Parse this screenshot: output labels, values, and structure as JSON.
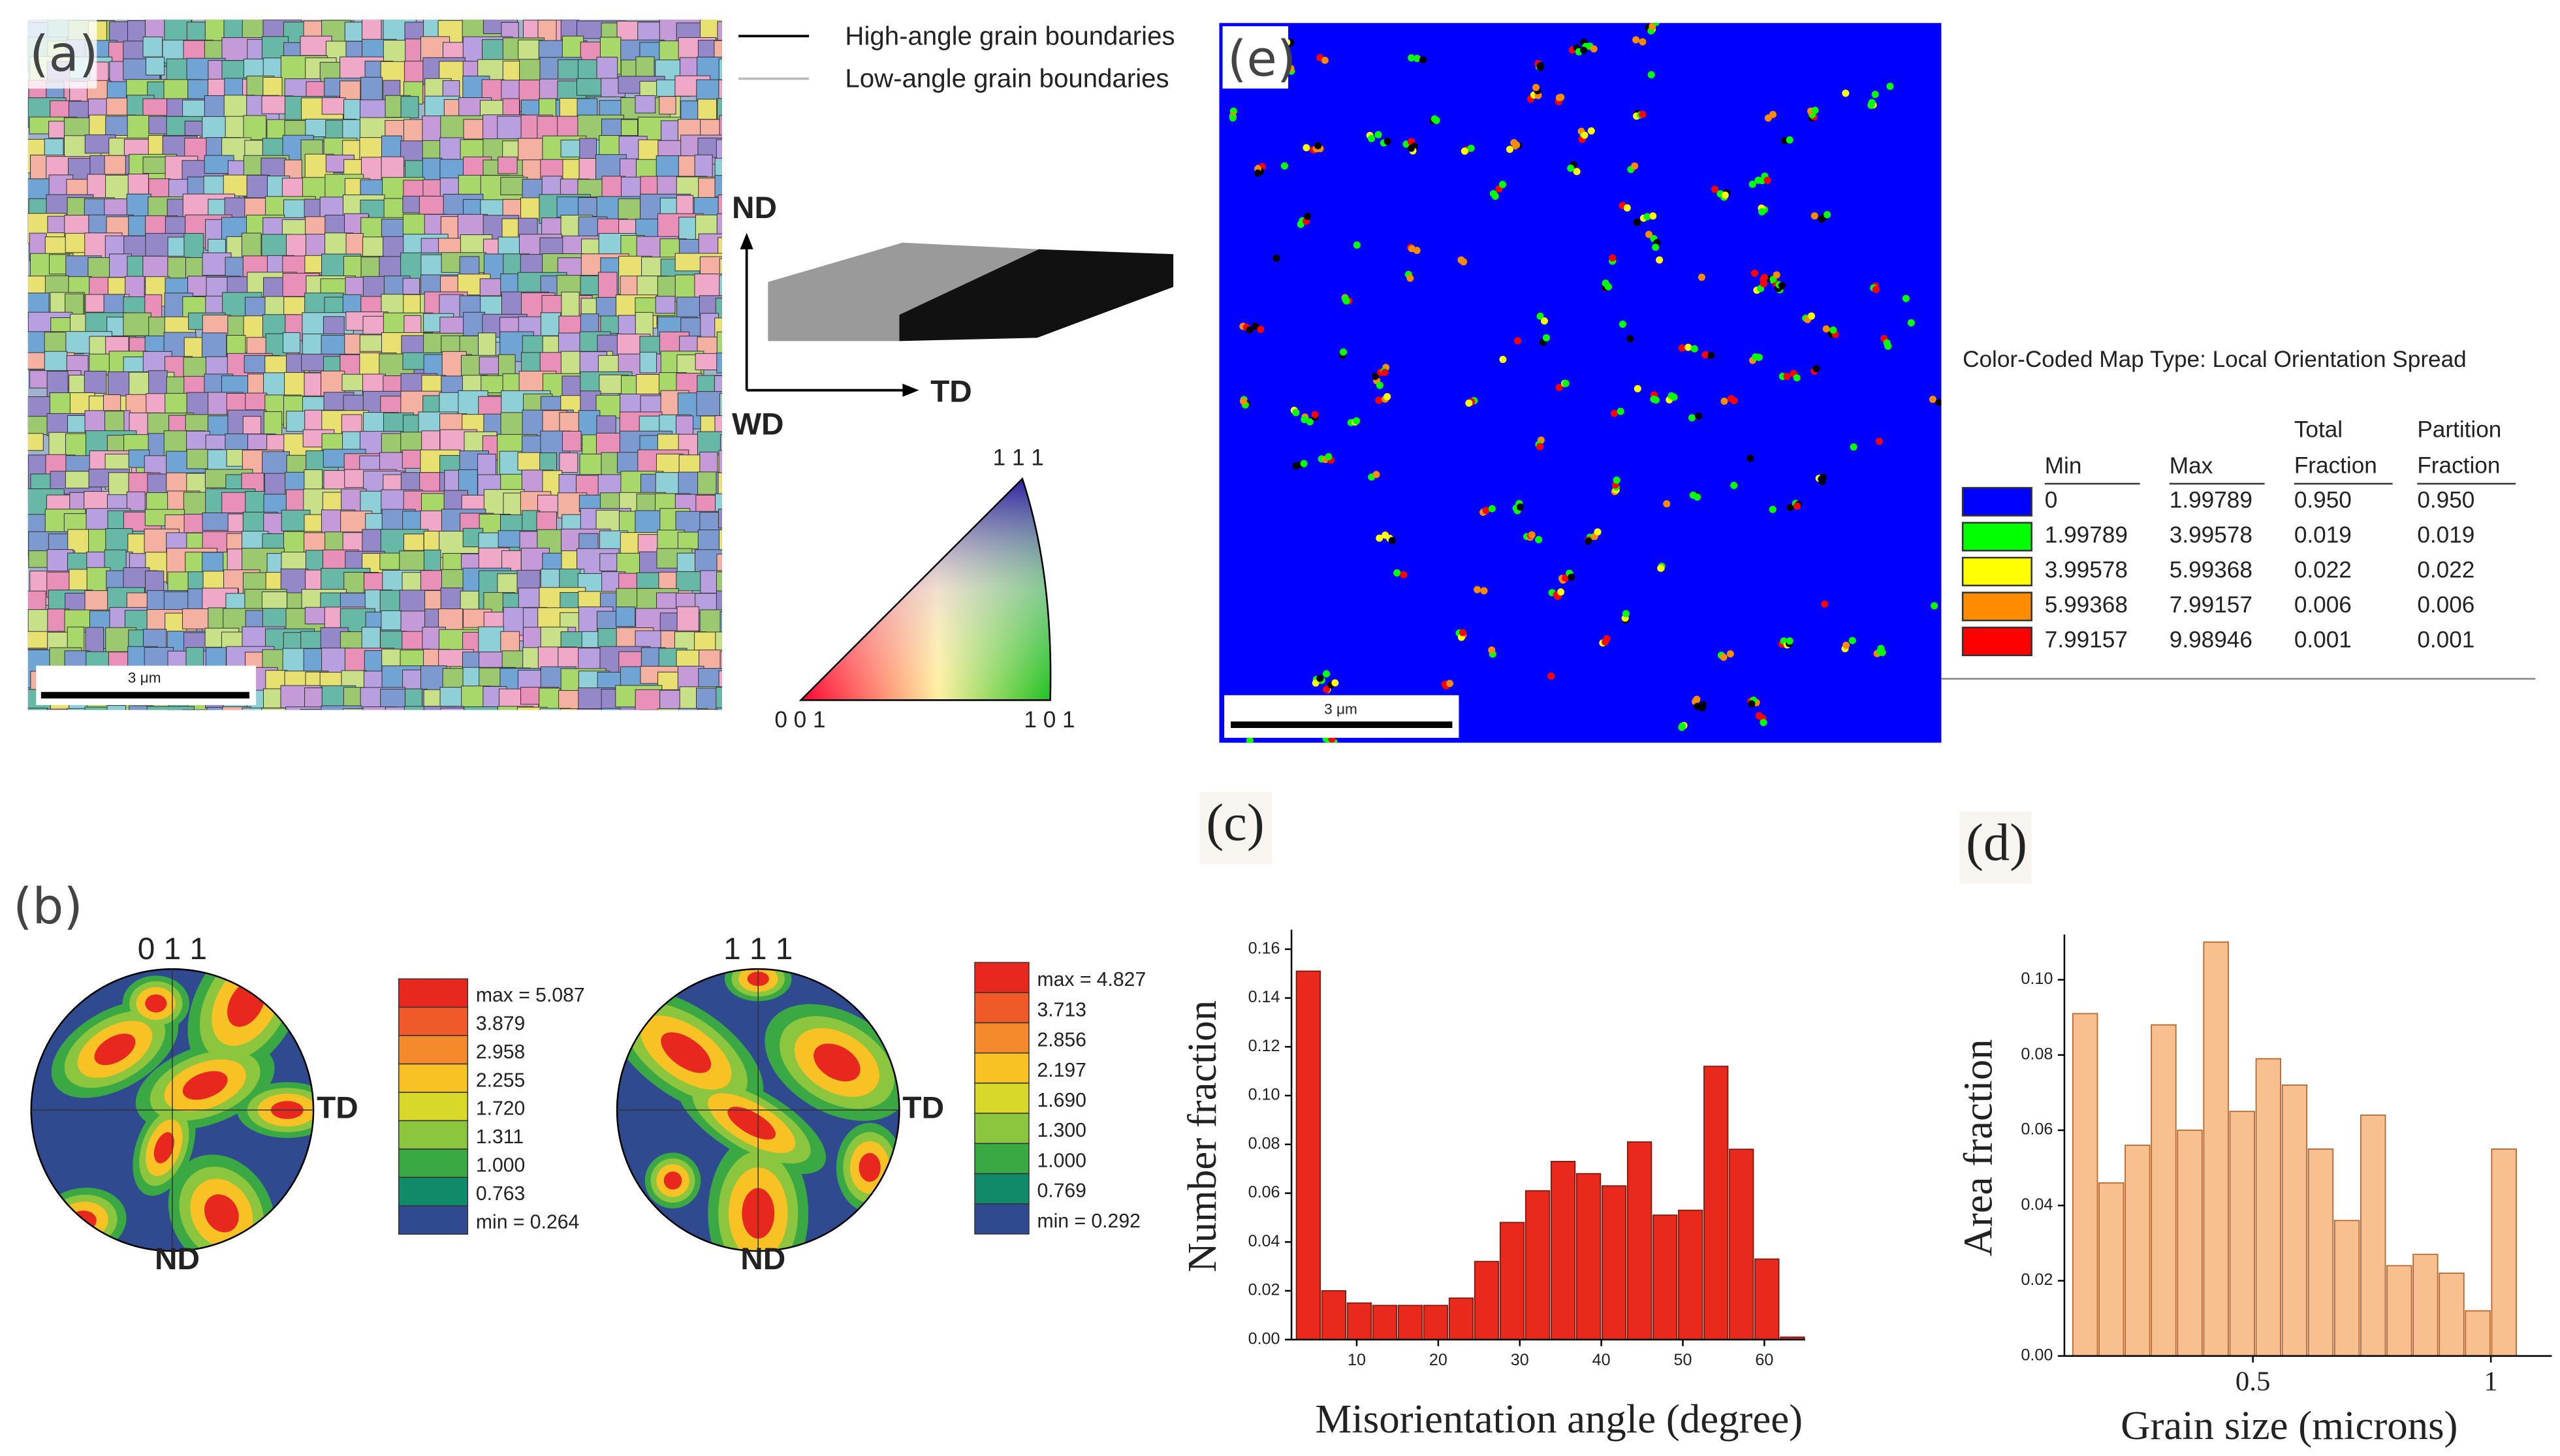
{
  "panel_a": {
    "label": "(a)",
    "scale_bar": "3 μm",
    "legend": [
      "High-angle grain boundaries",
      "Low-angle grain boundaries"
    ],
    "axes": [
      "ND",
      "TD",
      "WD"
    ],
    "ipf": [
      "0 0 1",
      "1 0 1",
      "1 1 1"
    ]
  },
  "panel_e": {
    "label": "(e)",
    "scale_bar": "3 μm",
    "table": {
      "title": "Color-Coded Map Type: Local Orientation Spread",
      "headers": [
        "Min",
        "Max",
        "Total Fraction",
        "Partition Fraction"
      ],
      "rows": [
        {
          "color": "#0000ff",
          "cells": [
            "0",
            "1.99789",
            "0.950",
            "0.950"
          ]
        },
        {
          "color": "#00ff00",
          "cells": [
            "1.99789",
            "3.99578",
            "0.019",
            "0.019"
          ]
        },
        {
          "color": "#ffff00",
          "cells": [
            "3.99578",
            "5.99368",
            "0.022",
            "0.022"
          ]
        },
        {
          "color": "#ff8c00",
          "cells": [
            "5.99368",
            "7.99157",
            "0.006",
            "0.006"
          ]
        },
        {
          "color": "#ff0000",
          "cells": [
            "7.99157",
            "9.98946",
            "0.001",
            "0.001"
          ]
        }
      ]
    }
  },
  "panel_b": {
    "label": "(b)",
    "colors": [
      "#e8281e",
      "#f05a28",
      "#f58a2c",
      "#f9c224",
      "#d8d82a",
      "#8cc63e",
      "#3aa843",
      "#118a6a",
      "#2f4a8e"
    ],
    "figures": [
      {
        "pole": "0 1 1",
        "right": "TD",
        "bottom": "ND",
        "levels": [
          "max = 5.087",
          "3.879",
          "2.958",
          "2.255",
          "1.720",
          "1.311",
          "1.000",
          "0.763",
          "min = 0.264"
        ]
      },
      {
        "pole": "1 1 1",
        "right": "TD",
        "bottom": "ND",
        "levels": [
          "max = 4.827",
          "3.713",
          "2.856",
          "2.197",
          "1.690",
          "1.300",
          "1.000",
          "0.769",
          "min = 0.292"
        ]
      }
    ]
  },
  "chart_data": [
    {
      "type": "histogram",
      "label": "(c)",
      "x_label": "Misorientation angle (degree)",
      "y_label": "Number fraction",
      "color": "#e8291c",
      "edge": "#7a1a10",
      "bins": [
        2.5,
        5.625,
        8.75,
        11.875,
        15,
        18.125,
        21.25,
        24.375,
        27.5,
        30.625,
        33.75,
        36.875,
        40,
        43.125,
        46.25,
        49.375,
        52.5,
        55.625,
        58.75,
        61.875,
        65
      ],
      "values": [
        0.151,
        0.02,
        0.015,
        0.014,
        0.014,
        0.014,
        0.017,
        0.032,
        0.048,
        0.061,
        0.073,
        0.068,
        0.063,
        0.081,
        0.051,
        0.053,
        0.112,
        0.078,
        0.033,
        0.001
      ],
      "xlim": [
        2,
        65
      ],
      "xticks": [
        10,
        20,
        30,
        40,
        50,
        60
      ],
      "ylim": [
        0,
        0.168
      ],
      "yticks": [
        {
          "value": 0,
          "label": "0.00"
        },
        {
          "value": 0.02,
          "label": "0.02"
        },
        {
          "value": 0.04,
          "label": "0.04"
        },
        {
          "value": 0.06,
          "label": "0.06"
        },
        {
          "value": 0.08,
          "label": "0.08"
        },
        {
          "value": 0.1,
          "label": "0.10"
        },
        {
          "value": 0.12,
          "label": "0.12"
        },
        {
          "value": 0.14,
          "label": "0.14"
        },
        {
          "value": 0.16,
          "label": "0.16"
        }
      ]
    },
    {
      "type": "histogram",
      "label": "(d)",
      "x_label": "Grain size (microns)",
      "y_label": "Area fraction",
      "color": "#f8c08e",
      "edge": "#b8642c",
      "bins": [
        0.12,
        0.175,
        0.23,
        0.285,
        0.34,
        0.395,
        0.45,
        0.505,
        0.56,
        0.615,
        0.67,
        0.725,
        0.78,
        0.835,
        0.89,
        0.945,
        1.0,
        1.055
      ],
      "values": [
        0.091,
        0.046,
        0.056,
        0.088,
        0.06,
        0.11,
        0.065,
        0.079,
        0.072,
        0.055,
        0.036,
        0.064,
        0.024,
        0.027,
        0.022,
        0.012,
        0.055
      ],
      "xlim": [
        0.104,
        1.128
      ],
      "xticks": [
        0.5,
        1
      ],
      "ylim": [
        0,
        0.112
      ],
      "yticks": [
        {
          "value": 0,
          "label": "0.00"
        },
        {
          "value": 0.02,
          "label": "0.02"
        },
        {
          "value": 0.04,
          "label": "0.04"
        },
        {
          "value": 0.06,
          "label": "0.06"
        },
        {
          "value": 0.08,
          "label": "0.08"
        },
        {
          "value": 0.1,
          "label": "0.10"
        }
      ]
    }
  ]
}
